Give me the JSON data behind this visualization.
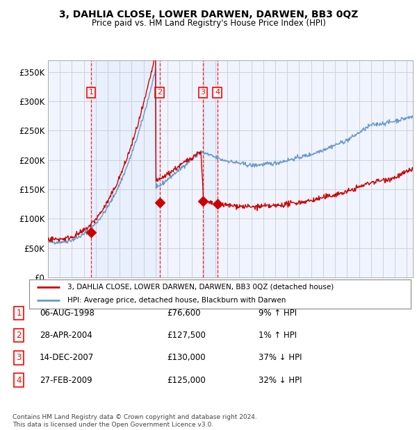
{
  "title": "3, DAHLIA CLOSE, LOWER DARWEN, DARWEN, BB3 0QZ",
  "subtitle": "Price paid vs. HM Land Registry's House Price Index (HPI)",
  "ylim": [
    0,
    370000
  ],
  "yticks": [
    0,
    50000,
    100000,
    150000,
    200000,
    250000,
    300000,
    350000
  ],
  "sale_dates_num": [
    1998.6,
    2004.33,
    2007.96,
    2009.16
  ],
  "sale_prices": [
    76600,
    127500,
    130000,
    125000
  ],
  "sale_labels": [
    "1",
    "2",
    "3",
    "4"
  ],
  "hpi_color": "#6699cc",
  "property_color": "#cc0000",
  "background_color": "#ffffff",
  "grid_color": "#cccccc",
  "legend_property": "3, DAHLIA CLOSE, LOWER DARWEN, DARWEN, BB3 0QZ (detached house)",
  "legend_hpi": "HPI: Average price, detached house, Blackburn with Darwen",
  "table_data": [
    [
      "1",
      "06-AUG-1998",
      "£76,600",
      "9% ↑ HPI"
    ],
    [
      "2",
      "28-APR-2004",
      "£127,500",
      "1% ↑ HPI"
    ],
    [
      "3",
      "14-DEC-2007",
      "£130,000",
      "37% ↓ HPI"
    ],
    [
      "4",
      "27-FEB-2009",
      "£125,000",
      "32% ↓ HPI"
    ]
  ],
  "footnote": "Contains HM Land Registry data © Crown copyright and database right 2024.\nThis data is licensed under the Open Government Licence v3.0.",
  "xmin": 1995.0,
  "xmax": 2025.5
}
